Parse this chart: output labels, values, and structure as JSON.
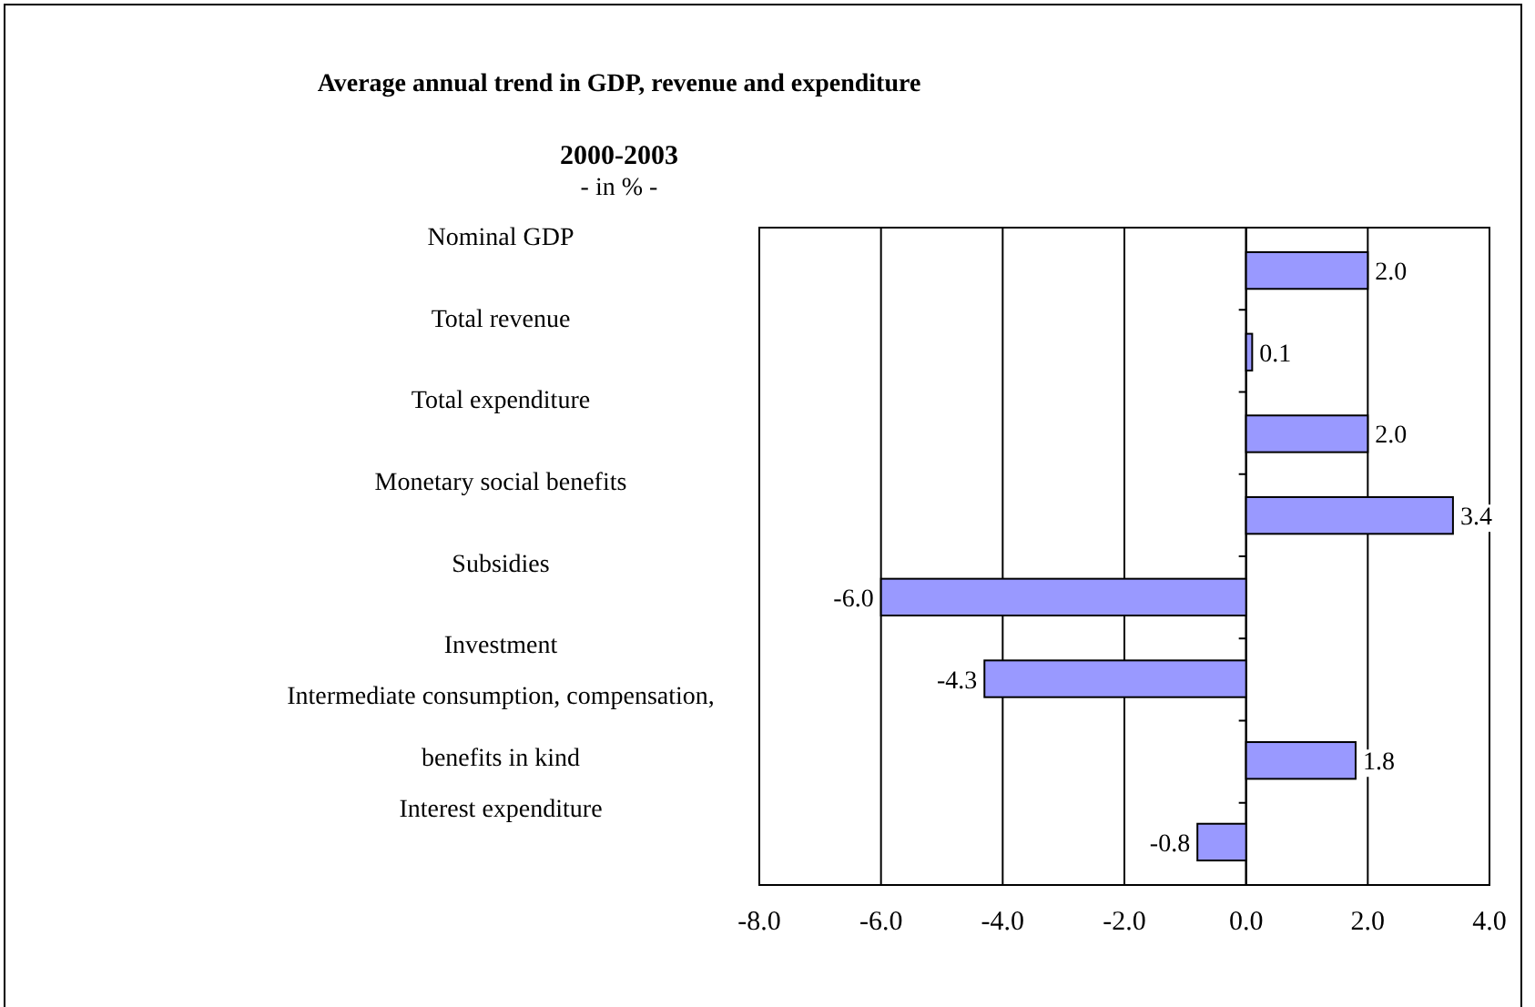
{
  "chart_data": {
    "type": "bar",
    "orientation": "horizontal",
    "title": "Average annual trend in GDP, revenue and expenditure",
    "subtitle": "2000-2003",
    "annotations": [
      "- in %  -"
    ],
    "categories": [
      "Nominal GDP",
      "Total revenue",
      "Total expenditure",
      "Monetary social benefits",
      "Subsidies",
      "Investment",
      "Intermediate consumption, compensation, benefits in kind",
      "Interest expenditure"
    ],
    "values": [
      2.0,
      0.1,
      2.0,
      3.4,
      -6.0,
      -4.3,
      1.8,
      -0.8
    ],
    "color": "#9999ff",
    "value_labels": [
      "2.0",
      "0.1",
      "2.0",
      "3.4",
      "-6.0",
      "-4.3",
      "1.8",
      "-0.8"
    ],
    "xlim": [
      -8,
      4
    ],
    "xticks": [
      {
        "value": -8,
        "label": "-8.0"
      },
      {
        "value": -6,
        "label": "-6.0"
      },
      {
        "value": -4,
        "label": "-4.0"
      },
      {
        "value": -2,
        "label": "-2.0"
      },
      {
        "value": 0,
        "label": "0.0"
      },
      {
        "value": 2,
        "label": "2.0"
      },
      {
        "value": 4,
        "label": "4.0"
      }
    ],
    "grid": "x"
  }
}
